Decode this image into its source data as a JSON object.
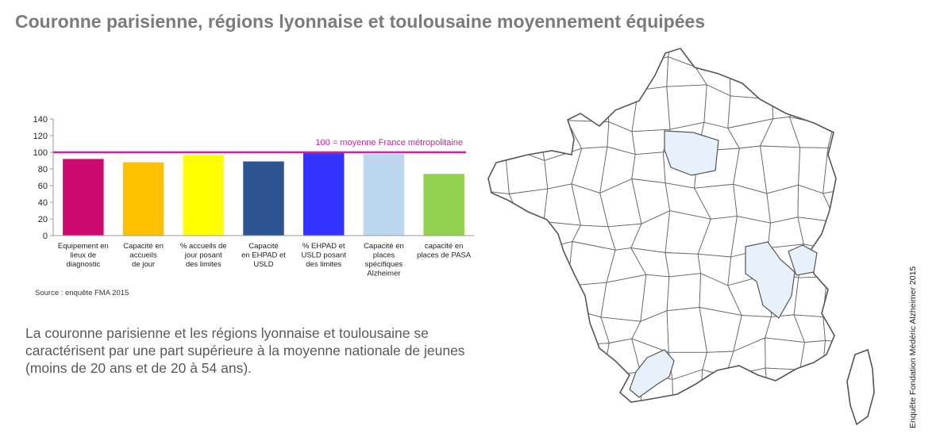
{
  "title": "Couronne parisienne, régions lyonnaise et toulousaine moyennement équipées",
  "source": "Source : enquête FMA 2015",
  "body_text": "La couronne parisienne et les régions lyonnaise et toulousaine se caractérisent par une part supérieure à la moyenne nationale de jeunes (moins de 20 ans et de 20 à 54 ans).",
  "credit": "Enquête Fondation Médéric Alzheimer 2015",
  "colors": {
    "title": "#7b7b7b",
    "reference_line": "#c8269c",
    "highlight_region": "#e6f1fb",
    "map_stroke": "#555555"
  },
  "chart_data": {
    "type": "bar",
    "categories": [
      [
        "Equipement en",
        "lieux de",
        "diagnostic"
      ],
      [
        "Capacité en",
        "accueils",
        "de jour"
      ],
      [
        "% accueils de",
        "jour posant",
        "des limites"
      ],
      [
        "Capacité",
        "en EHPAD et",
        "USLD"
      ],
      [
        "% EHPAD et",
        "USLD posant",
        "des limites"
      ],
      [
        "Capacité en",
        "places",
        "spécifiques",
        "Alzheimer"
      ],
      [
        "capacité en",
        "places de PASA"
      ]
    ],
    "values": [
      92,
      88,
      97,
      89,
      99,
      98,
      74
    ],
    "colors": [
      "#cc0a6f",
      "#ffc000",
      "#ffff00",
      "#2e5591",
      "#3333ff",
      "#bdd7ee",
      "#92d050"
    ],
    "ylim": [
      0,
      140
    ],
    "yticks": [
      0,
      20,
      40,
      60,
      80,
      100,
      120,
      140
    ],
    "reference": {
      "value": 100,
      "label": "100 = moyenne France métropolitaine"
    },
    "grid": false,
    "legend": "none"
  }
}
